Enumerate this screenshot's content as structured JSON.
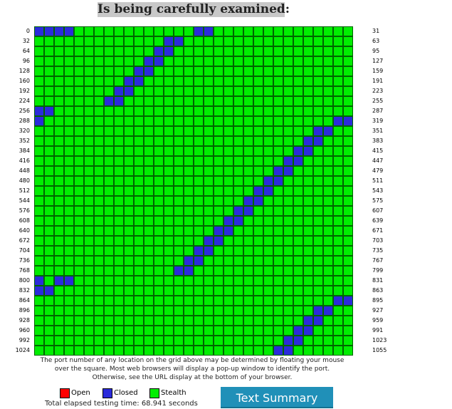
{
  "title": "Is being carefully examined:",
  "grid": {
    "columns": 32,
    "rows": 33,
    "row_labels_left": [
      "0",
      "32",
      "64",
      "96",
      "128",
      "160",
      "192",
      "224",
      "256",
      "288",
      "320",
      "352",
      "384",
      "416",
      "448",
      "480",
      "512",
      "544",
      "576",
      "608",
      "640",
      "672",
      "704",
      "736",
      "768",
      "800",
      "832",
      "864",
      "896",
      "928",
      "960",
      "992",
      "1024"
    ],
    "row_labels_right": [
      "31",
      "63",
      "95",
      "127",
      "159",
      "191",
      "223",
      "255",
      "287",
      "319",
      "351",
      "383",
      "415",
      "447",
      "479",
      "511",
      "543",
      "575",
      "607",
      "639",
      "671",
      "703",
      "735",
      "767",
      "799",
      "831",
      "863",
      "895",
      "927",
      "959",
      "991",
      "1023",
      "1055"
    ],
    "closed_ports": [
      0,
      1,
      2,
      3,
      16,
      17,
      45,
      46,
      76,
      77,
      107,
      108,
      138,
      139,
      169,
      170,
      200,
      201,
      231,
      232,
      256,
      257,
      288,
      318,
      319,
      348,
      349,
      379,
      380,
      410,
      411,
      441,
      442,
      472,
      473,
      503,
      504,
      534,
      535,
      565,
      566,
      596,
      597,
      627,
      628,
      658,
      659,
      689,
      690,
      720,
      721,
      751,
      752,
      782,
      783,
      800,
      802,
      803,
      832,
      833,
      894,
      895,
      924,
      925,
      955,
      956,
      986,
      987,
      1017,
      1018,
      1048,
      1049
    ],
    "open_ports": []
  },
  "note": "The port number of any location on the grid above may be determined by floating your mouse over the square. Most web browsers will display a pop-up window to identify the port. Otherwise, see the URL display at the bottom of your browser.",
  "legend": [
    {
      "label": "Open",
      "color": "#ff0000"
    },
    {
      "label": "Closed",
      "color": "#2b2bdb"
    },
    {
      "label": "Stealth",
      "color": "#00ee00"
    }
  ],
  "elapsed_label": "Total elapsed testing time:",
  "elapsed_value": "68.941 seconds",
  "elapsed_text": "Total elapsed testing time:  68.941 seconds",
  "button_label": "Text Summary",
  "colors": {
    "stealth": "#00ee00",
    "closed": "#2b2bdb",
    "open": "#ff0000",
    "cell_border": "#006400"
  }
}
